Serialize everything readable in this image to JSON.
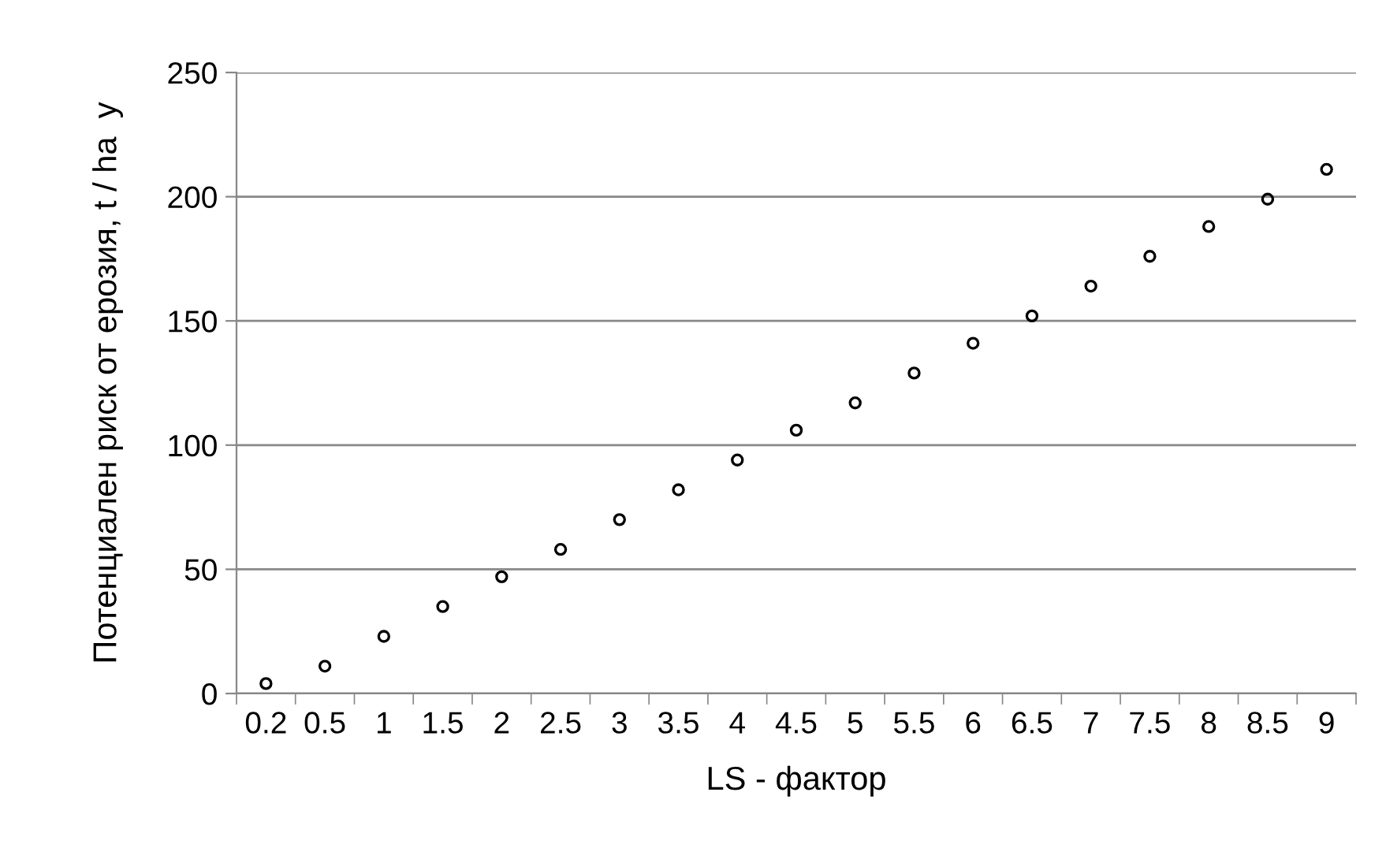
{
  "chart_data": {
    "type": "scatter",
    "xlabel": "LS - фактор",
    "ylabel": "Потенциален риск от ерозия, t / ha  y",
    "categories": [
      "0.2",
      "0.5",
      "1",
      "1.5",
      "2",
      "2.5",
      "3",
      "3.5",
      "4",
      "4.5",
      "5",
      "5.5",
      "6",
      "6.5",
      "7",
      "7.5",
      "8",
      "8.5",
      "9"
    ],
    "values": [
      4,
      11,
      23,
      35,
      47,
      58,
      70,
      82,
      94,
      106,
      117,
      129,
      141,
      152,
      164,
      176,
      188,
      199,
      211
    ],
    "color": "#000000",
    "marker": "circle",
    "ylim": [
      0,
      250
    ],
    "yticks": [
      0,
      50,
      100,
      150,
      200,
      250
    ],
    "grid": "y",
    "legend": false
  }
}
